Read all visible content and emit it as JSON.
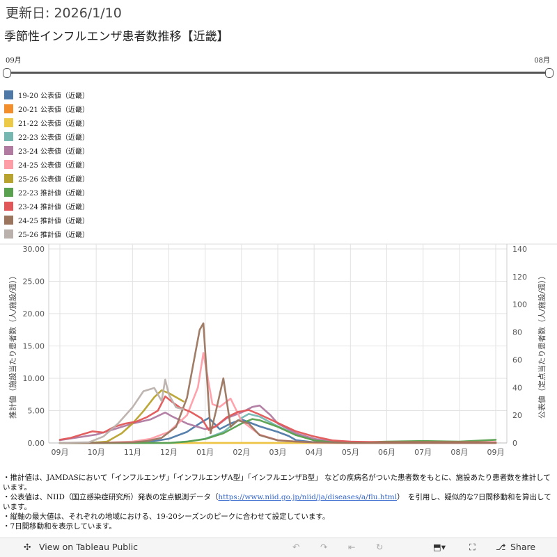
{
  "header": {
    "update": "更新日: 2026/1/10",
    "title": "季節性インフルエンザ患者数推移【近畿】"
  },
  "slider": {
    "start": "09月",
    "end": "08月"
  },
  "legend": [
    {
      "label": "19-20 公表値（近畿）",
      "color": "#4e79a7"
    },
    {
      "label": "20-21 公表値（近畿）",
      "color": "#f28e2b"
    },
    {
      "label": "21-22 公表値（近畿）",
      "color": "#edc948"
    },
    {
      "label": "22-23 公表値（近畿）",
      "color": "#76b7b2"
    },
    {
      "label": "23-24 公表値（近畿）",
      "color": "#b07aa1"
    },
    {
      "label": "24-25 公表値（近畿）",
      "color": "#ff9da7"
    },
    {
      "label": "25-26 公表値（近畿）",
      "color": "#b8a22e"
    },
    {
      "label": "22-23 推計値（近畿）",
      "color": "#59a14f"
    },
    {
      "label": "23-24 推計値（近畿）",
      "color": "#e15759"
    },
    {
      "label": "24-25 推計値（近畿）",
      "color": "#9c755f"
    },
    {
      "label": "25-26 推計値（近畿）",
      "color": "#bab0ac"
    }
  ],
  "chart_data": {
    "type": "line",
    "x_labels": [
      "09月",
      "10月",
      "11月",
      "12月",
      "01月",
      "02月",
      "03月",
      "04月",
      "05月",
      "06月",
      "07月",
      "08月",
      "09月"
    ],
    "y_left": {
      "label": "推計値（施設当たり患者数（人/施設/週））",
      "min": 0,
      "max": 30,
      "ticks": [
        "0.00",
        "5.00",
        "10.00",
        "15.00",
        "20.00",
        "25.00",
        "30.00"
      ]
    },
    "y_right": {
      "label": "公表値（定点当たり患者数（人/施設/週））",
      "min": 0,
      "max": 140,
      "ticks": [
        "0",
        "20",
        "40",
        "60",
        "80",
        "100",
        "120",
        "140"
      ]
    },
    "grid": true,
    "series": [
      {
        "name": "19-20 公表値（近畿）",
        "axis": "right",
        "color": "#4e79a7",
        "x": [
          0,
          1,
          2,
          2.5,
          3,
          3.5,
          3.9,
          4.1,
          4.4,
          4.7,
          5,
          5.5,
          6,
          6.3,
          6.5,
          7,
          8,
          9,
          10,
          11,
          12
        ],
        "y": [
          0,
          0.2,
          0.5,
          1,
          3,
          8,
          15,
          18,
          10,
          14,
          17,
          12,
          8,
          5,
          2,
          0.5,
          0,
          0,
          0,
          0,
          0
        ]
      },
      {
        "name": "20-21 公表値（近畿）",
        "axis": "right",
        "color": "#f28e2b",
        "x": [
          0,
          3,
          6,
          9,
          12
        ],
        "y": [
          0,
          0,
          0,
          0,
          0
        ]
      },
      {
        "name": "21-22 公表値（近畿）",
        "axis": "right",
        "color": "#edc948",
        "x": [
          0,
          3,
          6,
          9,
          12
        ],
        "y": [
          0,
          0,
          0,
          0,
          0
        ]
      },
      {
        "name": "22-23 公表値（近畿）",
        "axis": "right",
        "color": "#76b7b2",
        "x": [
          0,
          2,
          3,
          3.5,
          4,
          4.5,
          5,
          5.2,
          5.5,
          6,
          6.5,
          7,
          7.5,
          8,
          9,
          10,
          11,
          12
        ],
        "y": [
          0,
          0,
          0,
          1,
          3,
          8,
          18,
          21,
          19,
          12,
          6,
          2,
          0.5,
          0.3,
          0.5,
          1,
          0.5,
          0.3
        ]
      },
      {
        "name": "23-24 公表値（近畿）",
        "axis": "right",
        "color": "#b07aa1",
        "x": [
          0,
          0.5,
          1,
          1.5,
          2,
          2.5,
          2.9,
          3.1,
          3.5,
          4,
          4.3,
          4.6,
          5,
          5.3,
          5.5,
          5.8,
          6,
          6.5,
          7,
          7.5,
          8,
          9,
          10,
          11,
          12
        ],
        "y": [
          2,
          4,
          6,
          10,
          14,
          17,
          22,
          19,
          14,
          10,
          12,
          18,
          22,
          26,
          27,
          20,
          14,
          7,
          3,
          1,
          0.5,
          0.3,
          0.2,
          0.2,
          0.2
        ]
      },
      {
        "name": "24-25 公表値（近畿）",
        "axis": "right",
        "color": "#ff9da7",
        "x": [
          0,
          1,
          2,
          2.5,
          3,
          3.5,
          3.8,
          3.95,
          4.2,
          4.4,
          4.7,
          5,
          5.5,
          6,
          6.5,
          7,
          8,
          9,
          10,
          11,
          12
        ],
        "y": [
          0,
          0,
          1,
          3,
          8,
          20,
          40,
          65,
          28,
          26,
          32,
          16,
          6,
          2,
          1,
          0.3,
          0,
          0,
          0,
          0,
          0
        ]
      },
      {
        "name": "25-26 公表値（近畿）",
        "axis": "right",
        "color": "#b8a22e",
        "x": [
          0,
          0.8,
          1.3,
          1.7,
          2,
          2.3,
          2.6,
          2.8,
          3,
          3.2,
          3.4
        ],
        "y": [
          0,
          0,
          1,
          7,
          14,
          23,
          33,
          38,
          36,
          33,
          30
        ]
      },
      {
        "name": "22-23 推計値（近畿）",
        "axis": "left",
        "color": "#59a14f",
        "x": [
          0,
          2,
          3,
          3.5,
          4,
          4.5,
          5,
          5.3,
          5.5,
          6,
          6.5,
          7,
          7.5,
          8,
          9,
          10,
          11,
          12
        ],
        "y": [
          0,
          0,
          0,
          0.2,
          0.6,
          1.5,
          3.0,
          3.7,
          3.5,
          2.5,
          1.2,
          0.4,
          0.1,
          0.05,
          0.2,
          0.3,
          0.2,
          0.5
        ]
      },
      {
        "name": "23-24 推計値（近畿）",
        "axis": "left",
        "color": "#e15759",
        "x": [
          0,
          0.3,
          0.6,
          0.9,
          1.2,
          1.5,
          1.8,
          2.1,
          2.4,
          2.7,
          2.9,
          3.1,
          3.3,
          3.6,
          3.9,
          4.1,
          4.3,
          4.6,
          4.9,
          5.2,
          5.5,
          6,
          6.5,
          7,
          7.5,
          8,
          9,
          10,
          11,
          12
        ],
        "y": [
          0.5,
          0.8,
          1.3,
          1.8,
          1.6,
          2.5,
          3.0,
          3.3,
          4.0,
          5.0,
          7.2,
          6.3,
          5.5,
          4.8,
          3.8,
          2.0,
          2.6,
          4.0,
          4.8,
          5.1,
          4.4,
          3.1,
          1.8,
          1.0,
          0.4,
          0.2,
          0.1,
          0.1,
          0.1,
          0.1
        ]
      },
      {
        "name": "24-25 推計値（近畿）",
        "axis": "left",
        "color": "#9c755f",
        "x": [
          0,
          1,
          2,
          2.4,
          2.8,
          3.2,
          3.5,
          3.7,
          3.85,
          3.95,
          4.05,
          4.15,
          4.3,
          4.5,
          4.7,
          4.9,
          5.2,
          5.5,
          6,
          6.5,
          7,
          8,
          9,
          10,
          11,
          12
        ],
        "y": [
          0,
          0,
          0.1,
          0.3,
          0.8,
          2.5,
          7,
          13,
          17.5,
          18.5,
          10,
          1.5,
          5,
          10,
          2.5,
          3.5,
          3.0,
          1.2,
          0.4,
          0.2,
          0.1,
          0,
          0,
          0,
          0,
          0
        ]
      },
      {
        "name": "25-26 推計値（近畿）",
        "axis": "left",
        "color": "#bab0ac",
        "x": [
          0,
          0.8,
          1.2,
          1.6,
          2,
          2.3,
          2.6,
          2.8,
          2.9,
          3,
          3.1,
          3.2,
          3.4
        ],
        "y": [
          0,
          0.1,
          1,
          3,
          5.5,
          8,
          8.5,
          6.5,
          9.8,
          7.5,
          6.5,
          5.5,
          5.2
        ]
      }
    ]
  },
  "notes": {
    "line1": "・推計値は、JAMDASにおいて「インフルエンザ」「インフルエンザA型」「インフルエンザB型」 などの疾病名がついた患者数をもとに、施設あたり患者数を推計しています。",
    "line2a": "・公表値は、NIID（国立感染症研究所）発表の定点観測データ（",
    "link": "https://www.niid.go.jp/niid/ja/diseases/a/flu.html",
    "line2b": "）　を引用し、疑似的な7日間移動和を算出しています。",
    "line3": "・縦軸の最大値は、それぞれの地域における、19-20シーズンのピークに合わせて設定しています。",
    "line4": "・7日間移動和を表示しています。"
  },
  "toolbar": {
    "view_label": "View on Tableau Public",
    "share_label": "Share"
  }
}
